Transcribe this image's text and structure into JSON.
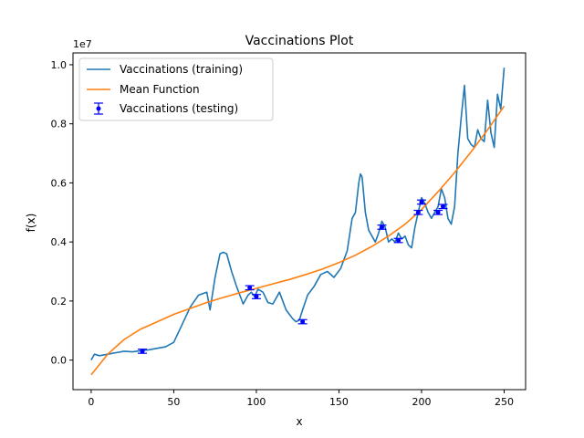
{
  "chart_data": {
    "type": "line",
    "title": "Vaccinations Plot",
    "xlabel": "x",
    "ylabel": "f(x)",
    "y_offset_label": "1e7",
    "xlim": [
      -11,
      263
    ],
    "ylim": [
      -0.1,
      1.04
    ],
    "x_ticks": [
      0,
      50,
      100,
      150,
      200,
      250
    ],
    "x_tick_labels": [
      "0",
      "50",
      "100",
      "150",
      "200",
      "250"
    ],
    "y_ticks": [
      0.0,
      0.2,
      0.4,
      0.6,
      0.8,
      1.0
    ],
    "y_tick_labels": [
      "0.0",
      "0.2",
      "0.4",
      "0.6",
      "0.8",
      "1.0"
    ],
    "grid": false,
    "legend_position": "top-left",
    "legend": [
      "Vaccinations (training)",
      "Mean Function",
      "Vaccinations (testing)"
    ],
    "colors": {
      "training": "#1f77b4",
      "mean": "#ff7f0e",
      "testing": "#0000ff"
    },
    "series": [
      {
        "name": "Vaccinations (training)",
        "x": [
          0,
          2,
          5,
          10,
          15,
          20,
          25,
          30,
          35,
          40,
          45,
          50,
          55,
          60,
          65,
          70,
          72,
          75,
          78,
          80,
          82,
          85,
          88,
          90,
          92,
          95,
          97,
          99,
          101,
          104,
          107,
          110,
          114,
          118,
          122,
          124,
          126,
          128,
          131,
          135,
          139,
          143,
          147,
          151,
          155,
          158,
          160,
          162,
          163,
          164,
          166,
          168,
          170,
          172,
          174,
          176,
          178,
          180,
          182,
          184,
          186,
          188,
          190,
          192,
          194,
          196,
          198,
          200,
          202,
          204,
          206,
          208,
          210,
          212,
          214,
          216,
          218,
          220,
          222,
          224,
          226,
          228,
          230,
          232,
          234,
          236,
          238,
          240,
          242,
          244,
          246,
          248,
          250
        ],
        "y": [
          0.0,
          0.02,
          0.015,
          0.02,
          0.025,
          0.03,
          0.028,
          0.032,
          0.035,
          0.04,
          0.045,
          0.06,
          0.12,
          0.18,
          0.22,
          0.23,
          0.17,
          0.28,
          0.36,
          0.365,
          0.36,
          0.3,
          0.25,
          0.22,
          0.19,
          0.22,
          0.23,
          0.215,
          0.24,
          0.23,
          0.195,
          0.19,
          0.23,
          0.17,
          0.14,
          0.13,
          0.135,
          0.17,
          0.22,
          0.25,
          0.29,
          0.3,
          0.28,
          0.31,
          0.37,
          0.48,
          0.5,
          0.6,
          0.63,
          0.62,
          0.5,
          0.44,
          0.42,
          0.4,
          0.43,
          0.47,
          0.45,
          0.4,
          0.41,
          0.4,
          0.43,
          0.41,
          0.42,
          0.39,
          0.38,
          0.45,
          0.5,
          0.55,
          0.53,
          0.5,
          0.48,
          0.5,
          0.52,
          0.58,
          0.55,
          0.48,
          0.46,
          0.52,
          0.7,
          0.82,
          0.93,
          0.75,
          0.73,
          0.72,
          0.78,
          0.75,
          0.74,
          0.88,
          0.77,
          0.72,
          0.9,
          0.85,
          0.99
        ]
      },
      {
        "name": "Mean Function",
        "x": [
          0,
          10,
          20,
          30,
          40,
          50,
          60,
          70,
          80,
          90,
          100,
          110,
          120,
          130,
          140,
          150,
          160,
          170,
          180,
          190,
          200,
          210,
          220,
          230,
          240,
          250
        ],
        "y": [
          -0.05,
          0.02,
          0.07,
          0.105,
          0.13,
          0.155,
          0.175,
          0.195,
          0.212,
          0.228,
          0.243,
          0.258,
          0.273,
          0.29,
          0.308,
          0.33,
          0.355,
          0.385,
          0.42,
          0.46,
          0.51,
          0.57,
          0.635,
          0.705,
          0.78,
          0.86
        ]
      },
      {
        "name": "Vaccinations (testing)",
        "x": [
          31,
          96,
          100,
          128,
          176,
          186,
          198,
          200,
          210,
          213
        ],
        "y": [
          0.03,
          0.245,
          0.215,
          0.13,
          0.45,
          0.405,
          0.5,
          0.535,
          0.5,
          0.52
        ],
        "yerr": [
          0.007,
          0.007,
          0.007,
          0.007,
          0.007,
          0.007,
          0.007,
          0.007,
          0.007,
          0.007
        ]
      }
    ]
  }
}
